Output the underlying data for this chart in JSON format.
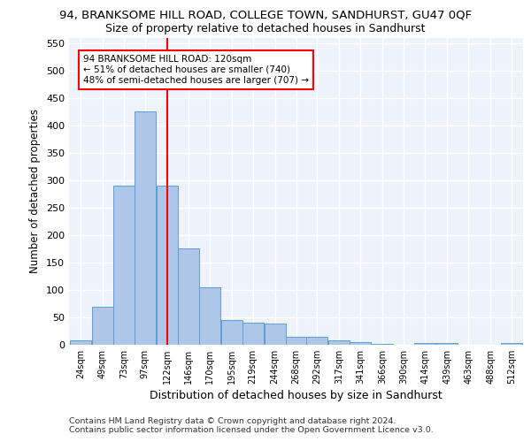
{
  "title": "94, BRANKSOME HILL ROAD, COLLEGE TOWN, SANDHURST, GU47 0QF",
  "subtitle": "Size of property relative to detached houses in Sandhurst",
  "xlabel": "Distribution of detached houses by size in Sandhurst",
  "ylabel": "Number of detached properties",
  "bar_color": "#aec6e8",
  "bar_edge_color": "#5a9fd4",
  "background_color": "#eef2fa",
  "grid_color": "#ffffff",
  "vline_x": 122,
  "vline_color": "red",
  "annotation_text": "94 BRANKSOME HILL ROAD: 120sqm\n← 51% of detached houses are smaller (740)\n48% of semi-detached houses are larger (707) →",
  "annotation_box_color": "white",
  "annotation_box_edge": "red",
  "ylim": [
    0,
    560
  ],
  "bin_edges": [
    24,
    49,
    73,
    97,
    122,
    146,
    170,
    195,
    219,
    244,
    268,
    292,
    317,
    341,
    366,
    390,
    414,
    439,
    463,
    488,
    512
  ],
  "bar_heights": [
    8,
    70,
    290,
    425,
    290,
    175,
    105,
    45,
    40,
    38,
    15,
    15,
    8,
    5,
    2,
    0,
    4,
    4,
    0,
    0,
    3
  ],
  "tick_labels": [
    "24sqm",
    "49sqm",
    "73sqm",
    "97sqm",
    "122sqm",
    "146sqm",
    "170sqm",
    "195sqm",
    "219sqm",
    "244sqm",
    "268sqm",
    "292sqm",
    "317sqm",
    "341sqm",
    "366sqm",
    "390sqm",
    "414sqm",
    "439sqm",
    "463sqm",
    "488sqm",
    "512sqm"
  ],
  "footer_line1": "Contains HM Land Registry data © Crown copyright and database right 2024.",
  "footer_line2": "Contains public sector information licensed under the Open Government Licence v3.0.",
  "title_fontsize": 9.5,
  "subtitle_fontsize": 9,
  "tick_fontsize": 7,
  "ylabel_fontsize": 8.5,
  "xlabel_fontsize": 9,
  "footer_fontsize": 6.8,
  "annotation_fontsize": 7.5
}
